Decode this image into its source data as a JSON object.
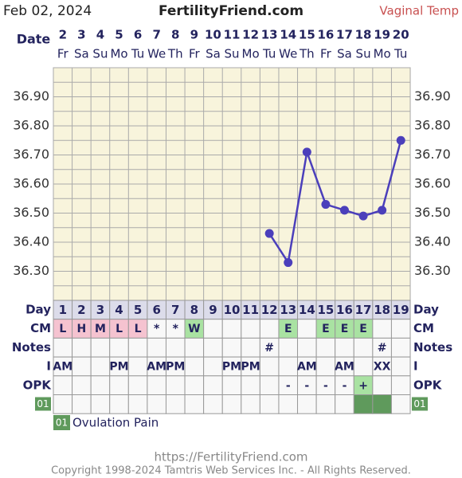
{
  "header": {
    "date": "Feb 02, 2024",
    "site": "FertilityFriend.com",
    "temp_type": "Vaginal Temp"
  },
  "chart_data": {
    "type": "line",
    "x_label": "Date",
    "categories": [
      "2",
      "3",
      "4",
      "5",
      "6",
      "7",
      "8",
      "9",
      "10",
      "11",
      "12",
      "13",
      "14",
      "15",
      "16",
      "17",
      "18",
      "19",
      "20"
    ],
    "weekdays": [
      "Fr",
      "Sa",
      "Su",
      "Mo",
      "Tu",
      "We",
      "Th",
      "Fr",
      "Sa",
      "Su",
      "Mo",
      "Tu",
      "We",
      "Th",
      "Fr",
      "Sa",
      "Su",
      "Mo",
      "Tu"
    ],
    "series": [
      {
        "name": "Temperature",
        "color": "#4b3fbb",
        "values": [
          null,
          null,
          null,
          null,
          null,
          null,
          null,
          null,
          null,
          null,
          null,
          36.43,
          36.33,
          36.71,
          36.53,
          36.51,
          36.49,
          36.51,
          36.75
        ]
      }
    ],
    "ylim": [
      36.2,
      37.0
    ],
    "yticks": [
      {
        "value": 36.3,
        "label": "36.30"
      },
      {
        "value": 36.4,
        "label": "36.40"
      },
      {
        "value": 36.5,
        "label": "36.50"
      },
      {
        "value": 36.6,
        "label": "36.60"
      },
      {
        "value": 36.7,
        "label": "36.70"
      },
      {
        "value": 36.8,
        "label": "36.80"
      },
      {
        "value": 36.9,
        "label": "36.90"
      }
    ],
    "ygrid": [
      36.2,
      36.25,
      36.3,
      36.35,
      36.4,
      36.45,
      36.5,
      36.55,
      36.6,
      36.65,
      36.7,
      36.75,
      36.8,
      36.85,
      36.9,
      36.95,
      37.0
    ],
    "background": "#f8f4dc"
  },
  "table": {
    "row_labels": [
      "Day",
      "CM",
      "Notes",
      "I",
      "OPK",
      "01"
    ],
    "rows": [
      [
        "1",
        "2",
        "3",
        "4",
        "5",
        "6",
        "7",
        "8",
        "9",
        "10",
        "11",
        "12",
        "13",
        "14",
        "15",
        "16",
        "17",
        "18",
        "19"
      ],
      [
        "L",
        "H",
        "M",
        "L",
        "L",
        "*",
        "*",
        "W",
        null,
        null,
        null,
        null,
        "E",
        null,
        "E",
        "E",
        "E",
        null,
        null
      ],
      [
        null,
        null,
        null,
        null,
        null,
        null,
        null,
        null,
        null,
        null,
        null,
        "#",
        null,
        null,
        null,
        null,
        null,
        "#",
        null
      ],
      [
        "AM",
        null,
        null,
        "PM",
        null,
        "AM",
        "PM",
        null,
        null,
        "PM",
        "PM",
        null,
        null,
        "AM",
        null,
        "AM",
        null,
        "XX",
        null
      ],
      [
        null,
        null,
        null,
        null,
        null,
        null,
        null,
        null,
        null,
        null,
        null,
        null,
        "-",
        "-",
        "-",
        "-",
        "+",
        null,
        null
      ]
    ],
    "ovulation_pain": [
      false,
      false,
      false,
      false,
      false,
      false,
      false,
      false,
      false,
      false,
      false,
      false,
      false,
      false,
      false,
      false,
      true,
      true,
      false
    ],
    "cell_colors": {
      "L": "#f5c3d0",
      "H": "#f5c3d0",
      "M": "#f5c3d0",
      "W": "#a9e2a2",
      "E": "#a9e2a2",
      "+": "#a9e2a2"
    },
    "mark_color": "#5f9a5c"
  },
  "legend": {
    "code": "01",
    "label": "Ovulation Pain"
  },
  "footer": {
    "url": "https://FertilityFriend.com",
    "copyright": "Copyright 1998-2024 Tamtris Web Services Inc. - All Rights Reserved."
  }
}
